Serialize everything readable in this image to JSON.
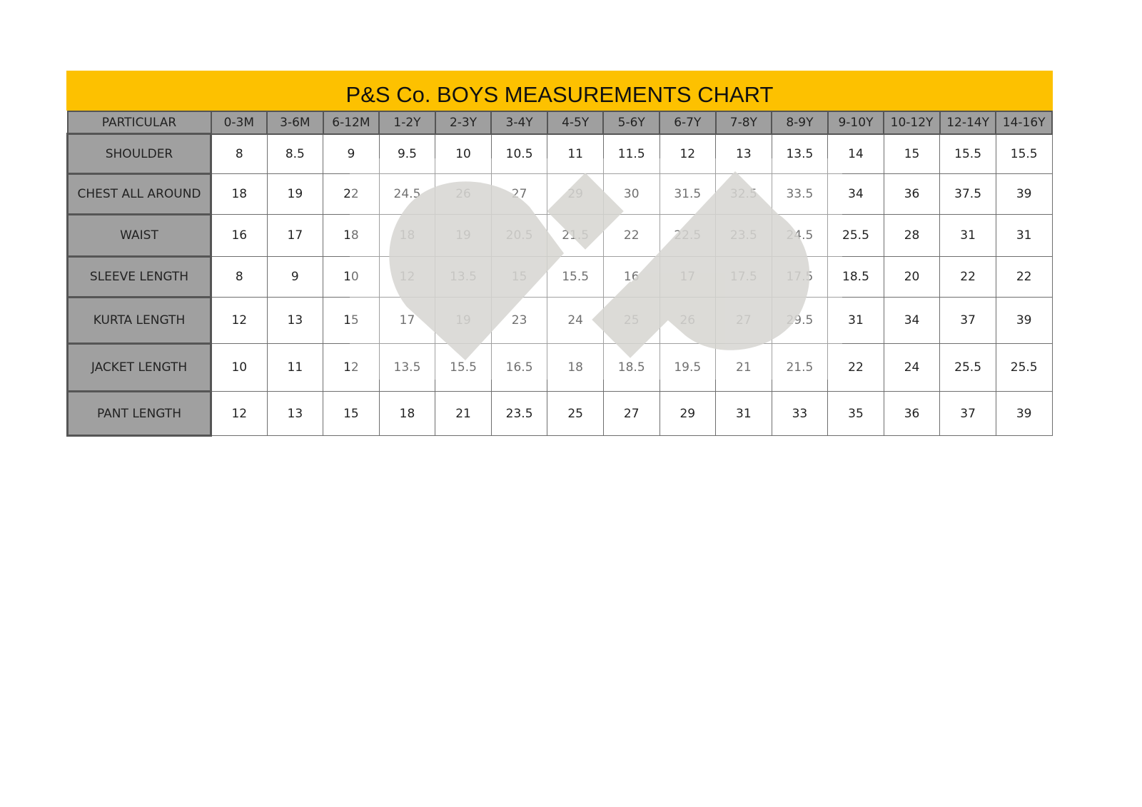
{
  "title": "P&S Co. BOYS MEASUREMENTS CHART",
  "header": [
    "PARTICULAR",
    "0-3M",
    "3-6M",
    "6-12M",
    "1-2Y",
    "2-3Y",
    "3-4Y",
    "4-5Y",
    "5-6Y",
    "6-7Y",
    "7-8Y",
    "8-9Y",
    "9-10Y",
    "10-12Y",
    "12-14Y",
    "14-16Y"
  ],
  "rows": [
    {
      "label": "SHOULDER",
      "values": [
        "8",
        "8.5",
        "9",
        "9.5",
        "10",
        "10.5",
        "11",
        "11.5",
        "12",
        "13",
        "13.5",
        "14",
        "15",
        "15.5",
        "15.5"
      ]
    },
    {
      "label": "CHEST ALL AROUND",
      "values": [
        "18",
        "19",
        "22",
        "24.5",
        "26",
        "27",
        "29",
        "30",
        "31.5",
        "32.5",
        "33.5",
        "34",
        "36",
        "37.5",
        "39"
      ]
    },
    {
      "label": "WAIST",
      "values": [
        "16",
        "17",
        "18",
        "18",
        "19",
        "20.5",
        "21.5",
        "22",
        "22.5",
        "23.5",
        "24.5",
        "25.5",
        "28",
        "31",
        "31"
      ]
    },
    {
      "label": "SLEEVE LENGTH",
      "values": [
        "8",
        "9",
        "10",
        "12",
        "13.5",
        "15",
        "15.5",
        "16",
        "17",
        "17.5",
        "17.5",
        "18.5",
        "20",
        "22",
        "22"
      ]
    },
    {
      "label": "KURTA LENGTH",
      "values": [
        "12",
        "13",
        "15",
        "17",
        "19",
        "23",
        "24",
        "25",
        "26",
        "27",
        "29.5",
        "31",
        "34",
        "37",
        "39"
      ]
    },
    {
      "label": "JACKET LENGTH",
      "values": [
        "10",
        "11",
        "12",
        "13.5",
        "15.5",
        "16.5",
        "18",
        "18.5",
        "19.5",
        "21",
        "21.5",
        "22",
        "24",
        "25.5",
        "25.5"
      ]
    },
    {
      "label": "PANT LENGTH",
      "values": [
        "12",
        "13",
        "15",
        "18",
        "21",
        "23.5",
        "25",
        "27",
        "29",
        "31",
        "33",
        "35",
        "36",
        "37",
        "39"
      ]
    }
  ],
  "colors": {
    "title_bg": "#fdc100",
    "header_bg": "#9f9f9f",
    "watermark": "#d6d5d1"
  }
}
